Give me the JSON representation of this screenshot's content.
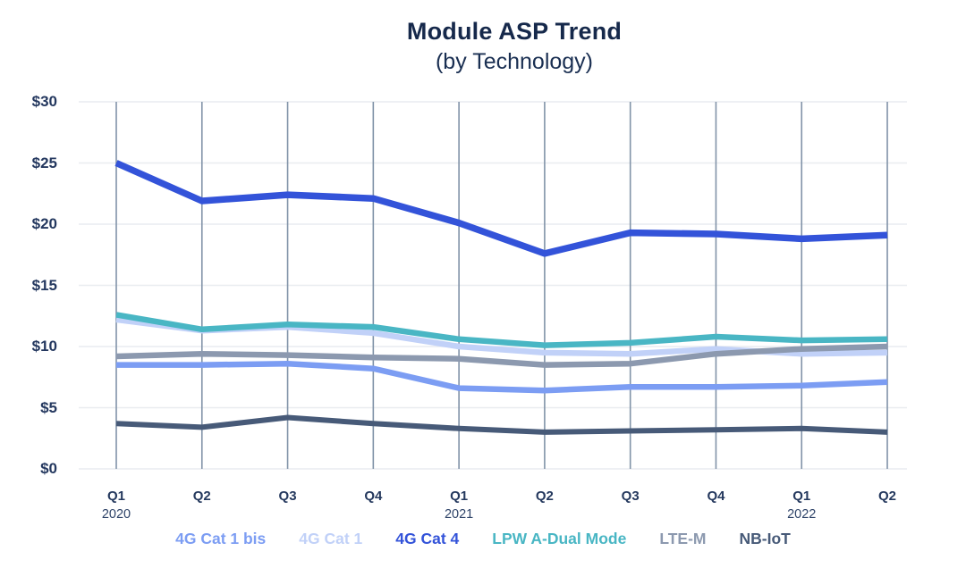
{
  "chart_data": {
    "type": "line",
    "title": "Module ASP Trend",
    "subtitle": "(by Technology)",
    "xlabel": "",
    "ylabel": "",
    "ylim": [
      0,
      30
    ],
    "currency_prefix": "$",
    "grid": {
      "vertical": true,
      "horizontal": true
    },
    "legend_position": "bottom",
    "y_ticks": [
      {
        "label": "$30",
        "value": 30
      },
      {
        "label": "$25",
        "value": 25
      },
      {
        "label": "$20",
        "value": 20
      },
      {
        "label": "$15",
        "value": 15
      },
      {
        "label": "$10",
        "value": 10
      },
      {
        "label": "$5",
        "value": 5
      },
      {
        "label": "$0",
        "value": 0
      }
    ],
    "categories": [
      {
        "quarter": "Q1",
        "year": "2020"
      },
      {
        "quarter": "Q2",
        "year": ""
      },
      {
        "quarter": "Q3",
        "year": ""
      },
      {
        "quarter": "Q4",
        "year": ""
      },
      {
        "quarter": "Q1",
        "year": "2021"
      },
      {
        "quarter": "Q2",
        "year": ""
      },
      {
        "quarter": "Q3",
        "year": ""
      },
      {
        "quarter": "Q4",
        "year": ""
      },
      {
        "quarter": "Q1",
        "year": "2022"
      },
      {
        "quarter": "Q2",
        "year": ""
      }
    ],
    "series": [
      {
        "name": "4G Cat 1 bis",
        "color": "#7c9df3",
        "line_width": 6.5,
        "values": [
          8.5,
          8.5,
          8.6,
          8.2,
          6.6,
          6.4,
          6.7,
          6.7,
          6.8,
          7.1
        ]
      },
      {
        "name": "4G Cat 1",
        "color": "#c1d1f8",
        "line_width": 6.5,
        "values": [
          12.2,
          11.3,
          11.6,
          11.1,
          10.0,
          9.5,
          9.4,
          9.8,
          9.4,
          9.5
        ]
      },
      {
        "name": "4G Cat 4",
        "color": "#3353d9",
        "line_width": 7.5,
        "values": [
          25.0,
          21.9,
          22.4,
          22.1,
          20.1,
          17.6,
          19.3,
          19.2,
          18.8,
          19.1
        ]
      },
      {
        "name": "LPW A-Dual Mode",
        "color": "#49b6c4",
        "line_width": 6.5,
        "values": [
          12.6,
          11.4,
          11.8,
          11.6,
          10.6,
          10.1,
          10.3,
          10.8,
          10.5,
          10.6
        ]
      },
      {
        "name": "LTE-M",
        "color": "#8c99af",
        "line_width": 6.5,
        "values": [
          9.2,
          9.4,
          9.3,
          9.1,
          9.0,
          8.5,
          8.6,
          9.4,
          9.8,
          10.0
        ]
      },
      {
        "name": "NB-IoT",
        "color": "#475a78",
        "line_width": 6.0,
        "values": [
          3.7,
          3.4,
          4.2,
          3.7,
          3.3,
          3.0,
          3.1,
          3.2,
          3.3,
          3.0
        ]
      }
    ],
    "draw_order": [
      1,
      4,
      3,
      0,
      5,
      2
    ],
    "grid_colors": {
      "vertical": "#8193a8",
      "horizontal": "#e9ecf0"
    }
  }
}
